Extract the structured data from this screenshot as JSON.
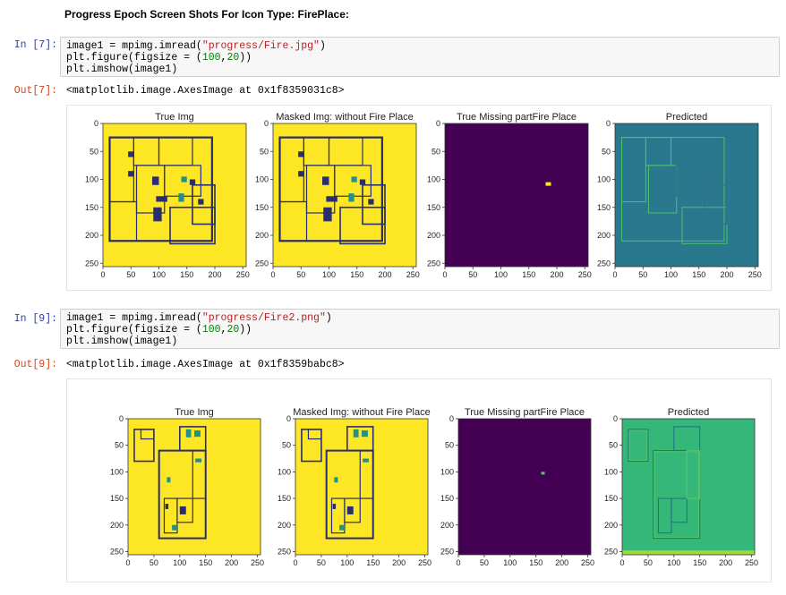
{
  "heading": "Progress Epoch Screen Shots For Icon Type: FirePlace:",
  "cells": [
    {
      "in_prompt": "In [7]:",
      "out_prompt": "Out[7]:",
      "code": {
        "l1a": "image1 = mpimg.imread(",
        "l1s": "\"progress/Fire.jpg\"",
        "l1b": ")",
        "l2a": "plt.figure(figsize = (",
        "l2n1": "100",
        "l2c": ",",
        "l2n2": "20",
        "l2b": "))",
        "l3": "plt.imshow(image1)"
      },
      "output": "<matplotlib.image.AxesImage at 0x1f8359031c8>"
    },
    {
      "in_prompt": "In [9]:",
      "out_prompt": "Out[9]:",
      "code": {
        "l1a": "image1 = mpimg.imread(",
        "l1s": "\"progress/Fire2.png\"",
        "l1b": ")",
        "l2a": "plt.figure(figsize = (",
        "l2n1": "100",
        "l2c": ",",
        "l2n2": "20",
        "l2b": "))",
        "l3": "plt.imshow(image1)"
      },
      "output": "<matplotlib.image.AxesImage at 0x1f8359babc8>"
    }
  ],
  "figures": [
    {
      "panels": [
        {
          "title": "True Img",
          "kind": "plan",
          "bg": "#fde725"
        },
        {
          "title": "Masked Img: without Fire Place",
          "kind": "plan",
          "bg": "#fde725"
        },
        {
          "title": "True Missing partFire Place",
          "kind": "dark",
          "bg": "#440154"
        },
        {
          "title": "Predicted",
          "kind": "pred",
          "bg": "#2a788e"
        }
      ],
      "ticks": [
        "0",
        "50",
        "100",
        "150",
        "200",
        "250"
      ]
    },
    {
      "panels": [
        {
          "title": "True Img",
          "kind": "plan2",
          "bg": "#fde725"
        },
        {
          "title": "Masked Img: without Fire Place",
          "kind": "plan2",
          "bg": "#fde725"
        },
        {
          "title": "True Missing partFire Place",
          "kind": "dark2",
          "bg": "#440154"
        },
        {
          "title": "Predicted",
          "kind": "pred2",
          "bg": "#35b779"
        }
      ],
      "ticks": [
        "0",
        "50",
        "100",
        "150",
        "200",
        "250"
      ]
    }
  ],
  "colors": {
    "in_prompt": "#303f9f",
    "out_prompt": "#d84315",
    "wall": "#2b2e6e",
    "teal": "#21918c"
  }
}
